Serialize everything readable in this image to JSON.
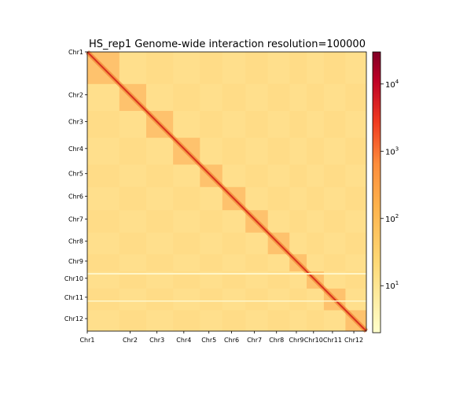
{
  "chart_data": {
    "type": "heatmap",
    "title": "HS_rep1 Genome-wide interaction resolution=100000",
    "chromosomes": [
      "Chr1",
      "Chr2",
      "Chr3",
      "Chr4",
      "Chr5",
      "Chr6",
      "Chr7",
      "Chr8",
      "Chr9",
      "Chr10",
      "Chr11",
      "Chr12"
    ],
    "x_tick_labels": [
      "Chr1",
      "Chr2",
      "Chr3",
      "Chr4",
      "Chr5",
      "Chr6",
      "Chr7",
      "Chr8",
      "Chr9",
      "Chr10",
      "Chr11",
      "Chr12"
    ],
    "y_tick_labels": [
      "Chr1",
      "Chr2",
      "Chr3",
      "Chr4",
      "Chr5",
      "Chr6",
      "Chr7",
      "Chr8",
      "Chr9",
      "Chr10",
      "Chr11",
      "Chr12"
    ],
    "chromosome_relative_sizes": [
      43,
      36,
      36,
      36,
      30,
      31,
      30,
      29,
      23,
      23,
      29,
      28
    ],
    "colorbar": {
      "scale": "log",
      "colormap": "YlOrRd",
      "range": [
        2,
        30000
      ],
      "tick_labels": [
        "10^1",
        "10^2",
        "10^3",
        "10^4"
      ],
      "tick_values": [
        10,
        100,
        1000,
        10000
      ]
    },
    "colors": {
      "background": "#ffdf8c",
      "diagonal": "#d7301f",
      "block": "#fdb863",
      "gap_line": "#fff6c8"
    }
  }
}
